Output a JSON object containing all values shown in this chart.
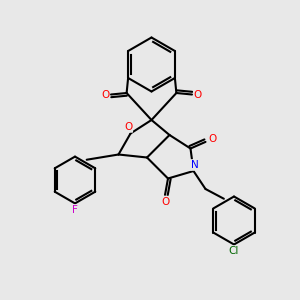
{
  "background_color": "#e8e8e8",
  "bond_color": "#000000",
  "line_width": 1.5,
  "atom_colors": {
    "O": "#ff0000",
    "N": "#0000ff",
    "F": "#cc00cc",
    "Cl": "#006600",
    "C": "#000000"
  }
}
